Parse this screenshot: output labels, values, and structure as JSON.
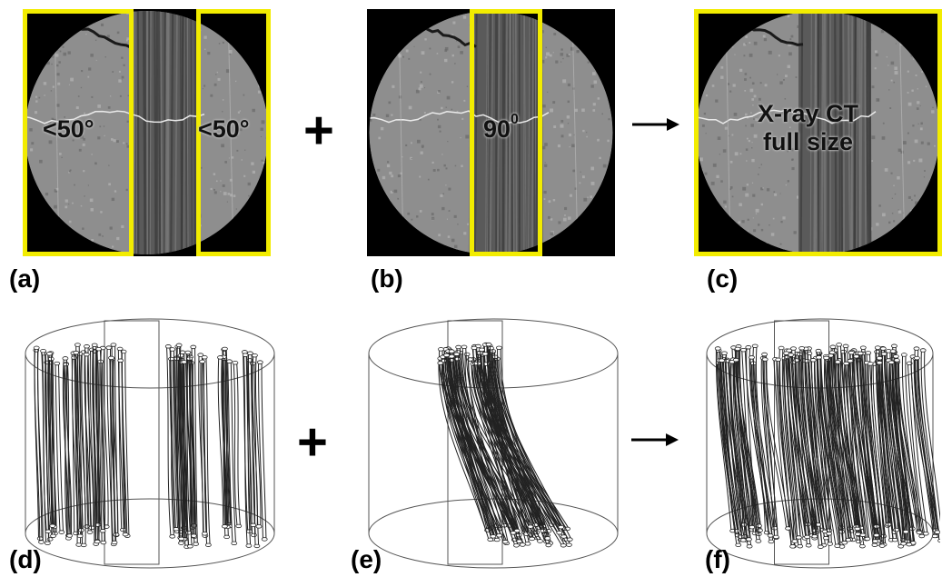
{
  "panels": {
    "a": {
      "label": "(a)",
      "left_text": "<50°",
      "right_text": "<50°"
    },
    "b": {
      "label": "(b)",
      "text": "90",
      "text_sup": "0"
    },
    "c": {
      "label": "(c)",
      "text_line1": "X-ray CT",
      "text_line2": "full size"
    },
    "d": {
      "label": "(d)"
    },
    "e": {
      "label": "(e)"
    },
    "f": {
      "label": "(f)"
    }
  },
  "operators": {
    "plus": "+",
    "arrow": "arrow-right-icon"
  },
  "colors": {
    "highlight_box": "#f2ec00",
    "ct_background": "#000000",
    "ct_gray": "#8a8a8a"
  }
}
